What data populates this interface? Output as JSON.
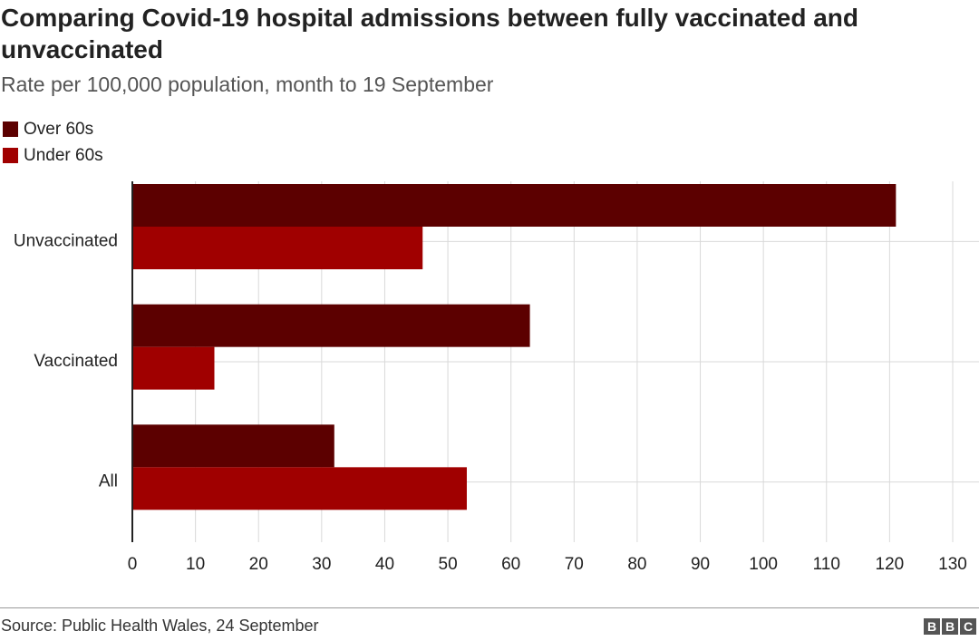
{
  "header": {
    "title": "Comparing Covid-19 hospital admissions between fully vaccinated and unvaccinated",
    "subtitle": "Rate per 100,000 population, month to 19 September"
  },
  "legend": [
    {
      "label": "Over 60s",
      "color": "#5c0000"
    },
    {
      "label": "Under 60s",
      "color": "#a00000"
    }
  ],
  "footer": {
    "source": "Source: Public Health Wales, 24 September",
    "logo_letters": [
      "B",
      "B",
      "C"
    ]
  },
  "chart_data": {
    "type": "bar",
    "orientation": "horizontal",
    "title": "Comparing Covid-19 hospital admissions between fully vaccinated and unvaccinated",
    "subtitle": "Rate per 100,000 population, month to 19 September",
    "categories": [
      "Unvaccinated",
      "Vaccinated",
      "All"
    ],
    "series": [
      {
        "name": "Over 60s",
        "color": "#5c0000",
        "values": [
          121,
          63,
          32
        ]
      },
      {
        "name": "Under 60s",
        "color": "#a00000",
        "values": [
          46,
          13,
          53
        ]
      }
    ],
    "xlim": [
      0,
      130
    ],
    "xticks": [
      0,
      10,
      20,
      30,
      40,
      50,
      60,
      70,
      80,
      90,
      100,
      110,
      120,
      130
    ],
    "grid": true,
    "legend_position": "top-left",
    "xlabel": "",
    "ylabel": ""
  }
}
